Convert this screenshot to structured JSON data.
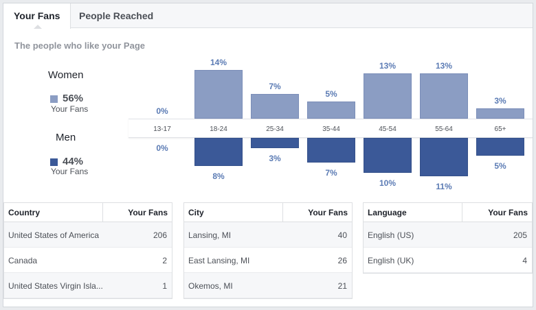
{
  "tabs": [
    {
      "label": "Your Fans",
      "active": true
    },
    {
      "label": "People Reached",
      "active": false
    }
  ],
  "subtitle": "The people who like your Page",
  "legend": {
    "women": {
      "title": "Women",
      "percent": "56%",
      "caption": "Your Fans",
      "color": "#8b9dc3"
    },
    "men": {
      "title": "Men",
      "percent": "44%",
      "caption": "Your Fans",
      "color": "#3b5998"
    }
  },
  "chart_data": {
    "type": "bar",
    "categories": [
      "13-17",
      "18-24",
      "25-34",
      "35-44",
      "45-54",
      "55-64",
      "65+"
    ],
    "series": [
      {
        "name": "Women",
        "values": [
          0,
          14,
          7,
          5,
          13,
          13,
          3
        ],
        "labels": [
          "0%",
          "14%",
          "7%",
          "5%",
          "13%",
          "13%",
          "3%"
        ]
      },
      {
        "name": "Men",
        "values": [
          0,
          8,
          3,
          7,
          10,
          11,
          5
        ],
        "labels": [
          "0%",
          "8%",
          "3%",
          "7%",
          "10%",
          "11%",
          "5%"
        ]
      }
    ]
  },
  "tables": {
    "country": {
      "headers": [
        "Country",
        "Your Fans"
      ],
      "rows": [
        [
          "United States of America",
          "206"
        ],
        [
          "Canada",
          "2"
        ],
        [
          "United States Virgin Isla...",
          "1"
        ]
      ]
    },
    "city": {
      "headers": [
        "City",
        "Your Fans"
      ],
      "rows": [
        [
          "Lansing, MI",
          "40"
        ],
        [
          "East Lansing, MI",
          "26"
        ],
        [
          "Okemos, MI",
          "21"
        ]
      ]
    },
    "language": {
      "headers": [
        "Language",
        "Your Fans"
      ],
      "rows": [
        [
          "English (US)",
          "205"
        ],
        [
          "English (UK)",
          "4"
        ]
      ]
    }
  }
}
